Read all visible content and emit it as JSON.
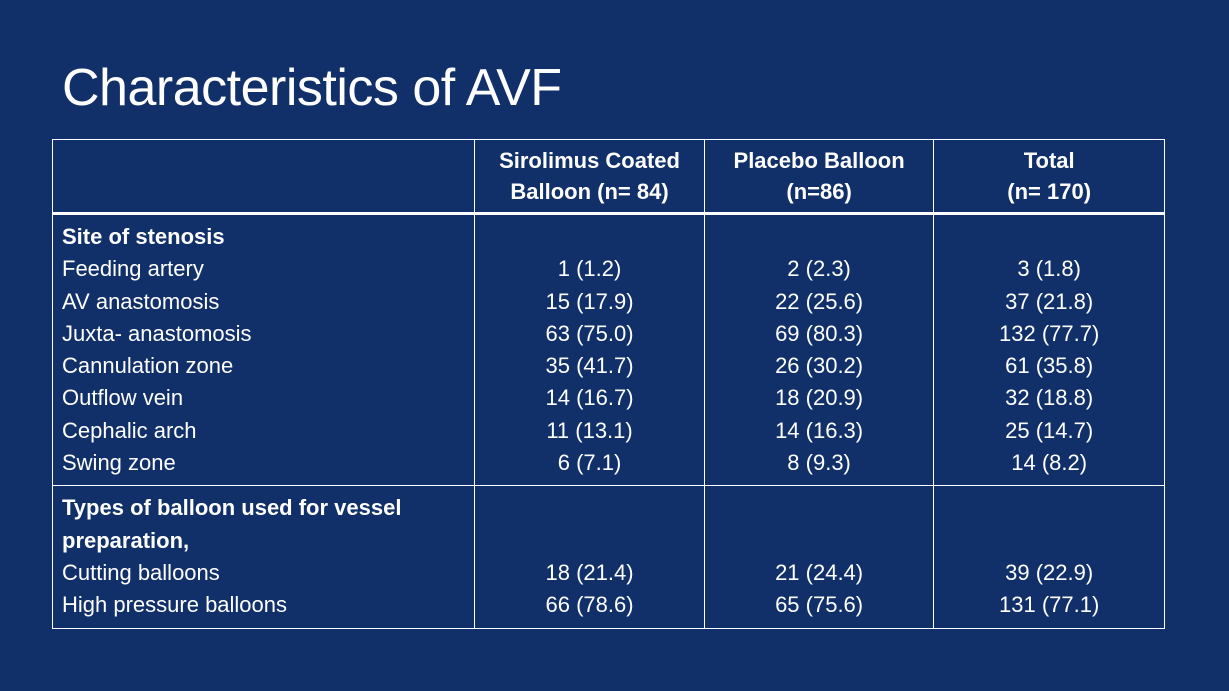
{
  "slide": {
    "title": "Characteristics of AVF"
  },
  "table": {
    "headers": [
      {
        "line1": "",
        "line2": ""
      },
      {
        "line1": "Sirolimus Coated",
        "line2": "Balloon (n= 84)"
      },
      {
        "line1": "Placebo Balloon",
        "line2": "(n=86)"
      },
      {
        "line1": "Total",
        "line2": "(n= 170)"
      }
    ],
    "section1": {
      "heading": "Site of stenosis",
      "rows": [
        {
          "label": "Feeding artery",
          "sirolimus": "1 (1.2)",
          "placebo": "2 (2.3)",
          "total": "3 (1.8)"
        },
        {
          "label": "AV anastomosis",
          "sirolimus": "15 (17.9)",
          "placebo": "22 (25.6)",
          "total": "37 (21.8)"
        },
        {
          "label": "Juxta- anastomosis",
          "sirolimus": "63 (75.0)",
          "placebo": "69 (80.3)",
          "total": "132 (77.7)"
        },
        {
          "label": "Cannulation zone",
          "sirolimus": "35 (41.7)",
          "placebo": "26 (30.2)",
          "total": "61 (35.8)"
        },
        {
          "label": "Outflow vein",
          "sirolimus": "14 (16.7)",
          "placebo": "18 (20.9)",
          "total": "32 (18.8)"
        },
        {
          "label": "Cephalic arch",
          "sirolimus": "11 (13.1)",
          "placebo": "14 (16.3)",
          "total": "25 (14.7)"
        },
        {
          "label": "Swing zone",
          "sirolimus": "6 (7.1)",
          "placebo": "8 (9.3)",
          "total": "14 (8.2)"
        }
      ]
    },
    "section2": {
      "heading_line1": "Types of balloon used for vessel",
      "heading_line2": "preparation,",
      "rows": [
        {
          "label": "Cutting balloons",
          "sirolimus": "18 (21.4)",
          "placebo": "21 (24.4)",
          "total": "39 (22.9)"
        },
        {
          "label": "High pressure balloons",
          "sirolimus": "66 (78.6)",
          "placebo": "65 (75.6)",
          "total": "131 (77.1)"
        }
      ]
    }
  },
  "colors": {
    "background": "#11306a",
    "text": "#ffffff",
    "grid": "#ffffff"
  }
}
